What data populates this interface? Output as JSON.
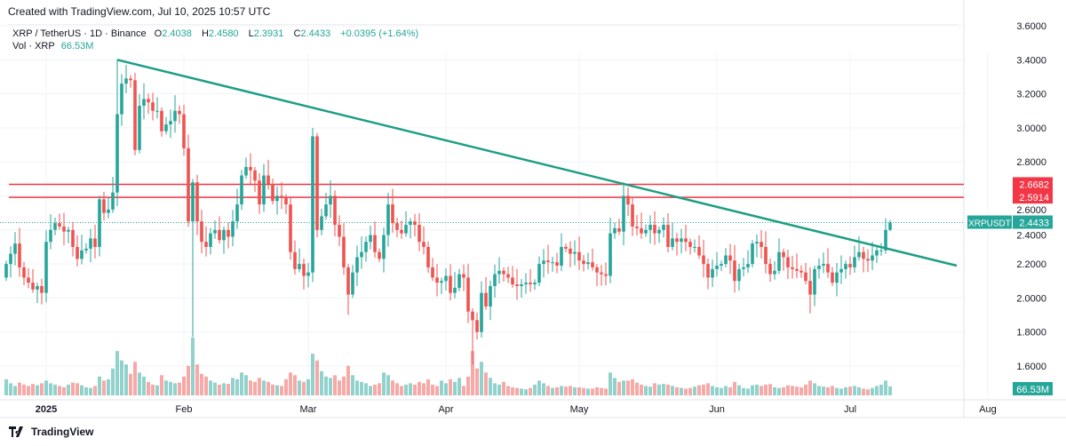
{
  "header": {
    "created": "Created with TradingView.com, Jul 10, 2025 10:57 UTC",
    "symbol": "XRP / TetherUS · 1D · Binance",
    "o_label": "O",
    "o": "2.4038",
    "h_label": "H",
    "h": "2.4580",
    "l_label": "L",
    "l": "2.3931",
    "c_label": "C",
    "c": "2.4433",
    "change": "+0.0395 (+1.64%)",
    "vol_label": "Vol · XRP",
    "vol": "66.53M"
  },
  "footer": {
    "brand": "TradingView",
    "logo_icon": "tradingview-logo-icon"
  },
  "colors": {
    "up": "#26a69a",
    "down": "#ef5350",
    "trendline": "#1e9e85",
    "level": "#f23645",
    "grid": "#f0f3fa"
  },
  "chart_data": {
    "type": "candlestick",
    "symbol": "XRPUSDT",
    "start_date": "2024-12-23",
    "interval": "1D",
    "ylim": [
      1.55,
      3.65
    ],
    "y_ticks": [
      "3.6000",
      "3.4000",
      "3.2000",
      "3.0000",
      "2.8000",
      "2.6000",
      "2.4000",
      "2.2000",
      "2.0000",
      "1.8000",
      "1.6000"
    ],
    "x_ticks": [
      {
        "label": "2025",
        "date": "2025-01-01",
        "bold": true
      },
      {
        "label": "Feb",
        "date": "2025-02-01"
      },
      {
        "label": "Mar",
        "date": "2025-03-01"
      },
      {
        "label": "Apr",
        "date": "2025-04-01"
      },
      {
        "label": "May",
        "date": "2025-05-01"
      },
      {
        "label": "Jun",
        "date": "2025-06-01"
      },
      {
        "label": "Jul",
        "date": "2025-07-01"
      },
      {
        "label": "Aug",
        "date": "2025-08-01"
      }
    ],
    "first_open": 2.12,
    "closes": [
      2.2,
      2.26,
      2.32,
      2.18,
      2.12,
      2.09,
      2.05,
      2.07,
      2.03,
      2.33,
      2.4,
      2.44,
      2.42,
      2.39,
      2.4,
      2.3,
      2.23,
      2.28,
      2.29,
      2.35,
      2.3,
      2.58,
      2.5,
      2.52,
      2.62,
      3.08,
      3.26,
      3.29,
      3.28,
      2.87,
      3.13,
      3.17,
      3.15,
      3.1,
      3.1,
      2.98,
      3.02,
      3.04,
      3.1,
      3.08,
      2.88,
      2.45,
      2.68,
      2.45,
      2.33,
      2.3,
      2.38,
      2.4,
      2.34,
      2.4,
      2.36,
      2.45,
      2.55,
      2.72,
      2.77,
      2.75,
      2.69,
      2.55,
      2.72,
      2.67,
      2.57,
      2.6,
      2.59,
      2.55,
      2.27,
      2.17,
      2.2,
      2.13,
      2.15,
      2.95,
      2.4,
      2.48,
      2.55,
      2.6,
      2.43,
      2.36,
      2.18,
      2.02,
      2.15,
      2.24,
      2.27,
      2.33,
      2.37,
      2.27,
      2.23,
      2.37,
      2.55,
      2.44,
      2.4,
      2.38,
      2.43,
      2.45,
      2.43,
      2.33,
      2.3,
      2.18,
      2.12,
      2.09,
      2.1,
      2.13,
      2.03,
      2.06,
      2.14,
      2.12,
      1.92,
      1.87,
      1.8,
      2.03,
      1.95,
      2.07,
      2.14,
      2.16,
      2.14,
      2.12,
      2.08,
      2.07,
      2.08,
      2.09,
      2.08,
      2.09,
      2.2,
      2.22,
      2.21,
      2.21,
      2.19,
      2.3,
      2.29,
      2.26,
      2.27,
      2.22,
      2.2,
      2.21,
      2.18,
      2.15,
      2.14,
      2.13,
      2.38,
      2.41,
      2.39,
      2.6,
      2.55,
      2.42,
      2.41,
      2.38,
      2.4,
      2.43,
      2.38,
      2.4,
      2.43,
      2.3,
      2.35,
      2.33,
      2.35,
      2.33,
      2.3,
      2.3,
      2.25,
      2.2,
      2.12,
      2.17,
      2.19,
      2.2,
      2.25,
      2.22,
      2.1,
      2.17,
      2.18,
      2.2,
      2.32,
      2.33,
      2.3,
      2.2,
      2.14,
      2.16,
      2.27,
      2.24,
      2.18,
      2.17,
      2.16,
      2.15,
      2.1,
      2.02,
      2.17,
      2.19,
      2.2,
      2.15,
      2.09,
      2.15,
      2.17,
      2.2,
      2.18,
      2.24,
      2.27,
      2.23,
      2.22,
      2.25,
      2.28,
      2.28,
      2.4,
      2.4433
    ],
    "notable_wicks": [
      {
        "date": "2025-01-17",
        "high": 3.4
      },
      {
        "date": "2025-02-03",
        "low": 1.77
      },
      {
        "date": "2025-03-02",
        "high": 3.0
      },
      {
        "date": "2025-03-10",
        "low": 1.9
      },
      {
        "date": "2025-04-07",
        "low": 1.61
      },
      {
        "date": "2025-05-12",
        "high": 2.65
      },
      {
        "date": "2025-06-22",
        "low": 1.91
      },
      {
        "date": "2025-07-10",
        "high": 2.458,
        "low": 2.3931
      }
    ],
    "volume_unit": "M",
    "volumes": [
      120,
      90,
      70,
      95,
      80,
      70,
      85,
      75,
      90,
      110,
      90,
      80,
      70,
      60,
      80,
      95,
      90,
      75,
      60,
      55,
      70,
      140,
      110,
      120,
      200,
      330,
      260,
      230,
      160,
      250,
      170,
      140,
      100,
      80,
      75,
      150,
      110,
      100,
      90,
      95,
      140,
      220,
      430,
      230,
      160,
      140,
      110,
      95,
      80,
      90,
      85,
      130,
      120,
      170,
      150,
      110,
      100,
      130,
      110,
      100,
      80,
      75,
      70,
      120,
      170,
      150,
      110,
      100,
      120,
      310,
      260,
      180,
      140,
      130,
      150,
      110,
      140,
      220,
      150,
      110,
      100,
      90,
      70,
      80,
      90,
      170,
      150,
      110,
      90,
      70,
      80,
      90,
      80,
      100,
      90,
      120,
      80,
      70,
      110,
      90,
      120,
      100,
      130,
      70,
      140,
      330,
      200,
      250,
      170,
      130,
      90,
      80,
      100,
      70,
      60,
      55,
      50,
      45,
      55,
      80,
      110,
      90,
      70,
      55,
      60,
      70,
      65,
      70,
      60,
      60,
      55,
      50,
      50,
      60,
      55,
      50,
      170,
      130,
      100,
      110,
      110,
      120,
      95,
      80,
      70,
      65,
      90,
      80,
      85,
      80,
      70,
      60,
      55,
      50,
      55,
      65,
      75,
      80,
      90,
      70,
      60,
      55,
      70,
      60,
      100,
      75,
      55,
      50,
      75,
      80,
      70,
      80,
      85,
      60,
      55,
      60,
      75,
      70,
      65,
      60,
      80,
      110,
      90,
      70,
      65,
      60,
      70,
      55,
      50,
      60,
      65,
      70,
      60,
      50,
      45,
      55,
      70,
      80,
      110,
      66.53
    ],
    "trendline": {
      "start": {
        "date": "2025-01-17",
        "price": 3.4
      },
      "end": {
        "date": "2025-07-25",
        "price": 2.19
      }
    },
    "horizontal_levels": [
      {
        "price": 2.6682,
        "label": "2.6682"
      },
      {
        "price": 2.5914,
        "label": "2.5914"
      }
    ],
    "last_price": {
      "symbol": "XRPUSDT",
      "label": "2.4433",
      "price": 2.4433
    },
    "last_volume": {
      "label": "66.53M",
      "value": 66.53
    }
  }
}
